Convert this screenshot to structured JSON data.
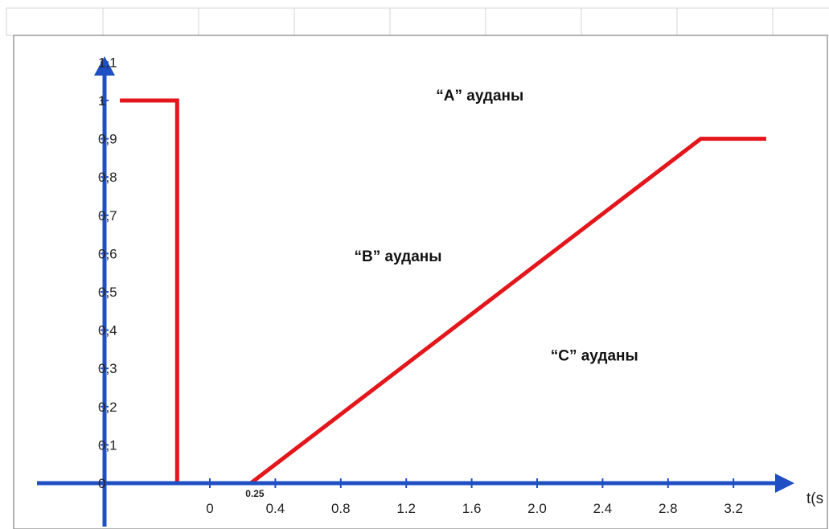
{
  "chart_data": {
    "type": "line",
    "series": [
      {
        "color": "#e3161b",
        "points": [
          [
            -0.55,
            1.0
          ],
          [
            -0.2,
            1.0
          ],
          [
            -0.2,
            0.0
          ],
          [
            0.25,
            0.0
          ],
          [
            3.0,
            0.9
          ],
          [
            3.4,
            0.9
          ]
        ]
      }
    ],
    "x_ticks": [
      "0",
      "0.4",
      "0.8",
      "1.2",
      "1.6",
      "2.0",
      "2.4",
      "2.8",
      "3.2"
    ],
    "x_tick_values": [
      0.0,
      0.4,
      0.8,
      1.2,
      1.6,
      2.0,
      2.4,
      2.8,
      3.2
    ],
    "extra_x_tick": {
      "label": "0.25",
      "value": 0.25
    },
    "y_ticks": [
      "0",
      "0,1",
      "0,2",
      "0,3",
      "0,4",
      "0,5",
      "0,6",
      "0,7",
      "0,8",
      "0,9",
      "1",
      "1,1"
    ],
    "y_tick_values": [
      0.0,
      0.1,
      0.2,
      0.3,
      0.4,
      0.5,
      0.6,
      0.7,
      0.8,
      0.9,
      1.0,
      1.1
    ],
    "xlabel": "t(s",
    "annotations": [
      {
        "text": "“A” ауданы",
        "x": 1.65,
        "y": 1.0
      },
      {
        "text": "“B” ауданы",
        "x": 1.15,
        "y": 0.58
      },
      {
        "text": "“C” ауданы",
        "x": 2.35,
        "y": 0.32
      }
    ],
    "axis_color": "#1f4fc4",
    "grid_color": "#d4d4d4",
    "grid": false
  }
}
